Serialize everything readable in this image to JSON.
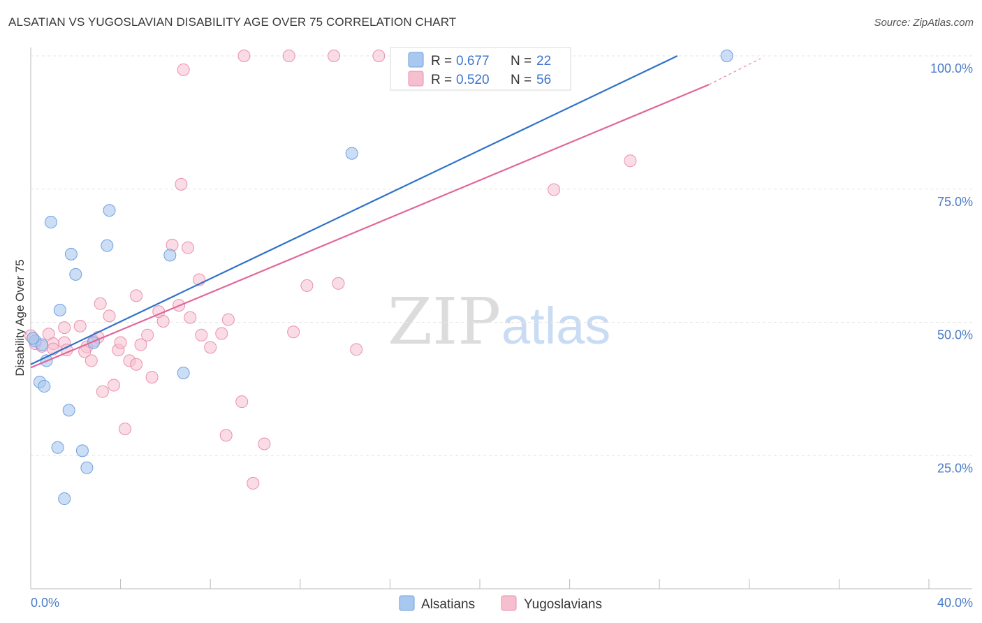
{
  "header": {
    "title": "ALSATIAN VS YUGOSLAVIAN DISABILITY AGE OVER 75 CORRELATION CHART",
    "source": "Source: ZipAtlas.com"
  },
  "watermark": {
    "zip": "ZIP",
    "atlas": "atlas"
  },
  "colors": {
    "alsatian_fill": "#a9c8f0",
    "alsatian_stroke": "#6f9fdc",
    "alsatian_line": "#2f72c9",
    "yugoslavian_fill": "#f6bfd0",
    "yugoslavian_stroke": "#eb8fae",
    "yugoslavian_line": "#e0679a",
    "accent_text": "#3d74cc"
  },
  "legend": {
    "r_label": "R = ",
    "n_label": "N = ",
    "alsatian": {
      "r": "0.677",
      "n": "22"
    },
    "yugoslavian": {
      "r": "0.520",
      "n": "56"
    }
  },
  "chart_data": {
    "type": "scatter",
    "title": "ALSATIAN VS YUGOSLAVIAN DISABILITY AGE OVER 75 CORRELATION CHART",
    "xlabel": "",
    "ylabel": "Disability Age Over 75",
    "xlim": [
      0,
      40
    ],
    "ylim": [
      0,
      103
    ],
    "x_tick_labels": [
      "0.0%",
      "40.0%"
    ],
    "y_ticks": [
      25,
      50,
      75,
      100
    ],
    "y_tick_labels": [
      "25.0%",
      "50.0%",
      "75.0%",
      "100.0%"
    ],
    "grid": true,
    "legend_position": "bottom",
    "series": [
      {
        "name": "Alsatians",
        "r": 0.677,
        "n": 22,
        "trend": {
          "x": [
            0,
            28.8
          ],
          "y": [
            42.1,
            100
          ]
        },
        "points": [
          [
            0.2,
            46.5
          ],
          [
            0.5,
            45.8
          ],
          [
            0.7,
            42.8
          ],
          [
            0.4,
            38.8
          ],
          [
            0.6,
            38.0
          ],
          [
            0.9,
            68.8
          ],
          [
            1.3,
            52.3
          ],
          [
            1.8,
            62.8
          ],
          [
            2.0,
            59.0
          ],
          [
            3.5,
            71.0
          ],
          [
            3.4,
            64.4
          ],
          [
            2.8,
            46.2
          ],
          [
            6.2,
            62.6
          ],
          [
            6.8,
            40.5
          ],
          [
            1.7,
            33.5
          ],
          [
            1.2,
            26.5
          ],
          [
            2.3,
            25.9
          ],
          [
            2.5,
            22.7
          ],
          [
            1.5,
            16.9
          ],
          [
            14.3,
            81.7
          ],
          [
            31.0,
            100.0
          ],
          [
            0.1,
            47.0
          ]
        ]
      },
      {
        "name": "Yugoslavians",
        "r": 0.52,
        "n": 56,
        "trend": {
          "x": [
            0,
            30.2
          ],
          "y": [
            41.5,
            94.6
          ]
        },
        "trend_dashed_extension": {
          "x": [
            30.2,
            32.5
          ],
          "y": [
            94.6,
            99.5
          ]
        },
        "points": [
          [
            0.1,
            47.0
          ],
          [
            0.2,
            46.0
          ],
          [
            0.5,
            45.5
          ],
          [
            0.8,
            47.8
          ],
          [
            1.0,
            46.0
          ],
          [
            1.5,
            46.2
          ],
          [
            1.6,
            44.8
          ],
          [
            1.5,
            49.0
          ],
          [
            2.2,
            49.3
          ],
          [
            2.8,
            46.5
          ],
          [
            2.5,
            45.4
          ],
          [
            2.4,
            44.5
          ],
          [
            2.7,
            42.8
          ],
          [
            3.0,
            47.2
          ],
          [
            3.1,
            53.5
          ],
          [
            3.5,
            51.2
          ],
          [
            3.9,
            44.8
          ],
          [
            4.0,
            46.2
          ],
          [
            4.4,
            42.8
          ],
          [
            4.7,
            42.1
          ],
          [
            4.7,
            55.0
          ],
          [
            4.9,
            45.8
          ],
          [
            5.2,
            47.6
          ],
          [
            5.4,
            39.7
          ],
          [
            5.7,
            52.0
          ],
          [
            5.9,
            50.2
          ],
          [
            6.3,
            64.5
          ],
          [
            6.6,
            53.2
          ],
          [
            6.7,
            75.9
          ],
          [
            7.0,
            64.0
          ],
          [
            7.1,
            50.9
          ],
          [
            7.5,
            58.0
          ],
          [
            7.6,
            47.6
          ],
          [
            8.0,
            45.3
          ],
          [
            8.5,
            47.9
          ],
          [
            8.8,
            50.5
          ],
          [
            3.7,
            38.2
          ],
          [
            3.2,
            37.0
          ],
          [
            4.2,
            30.0
          ],
          [
            8.7,
            28.8
          ],
          [
            9.4,
            35.1
          ],
          [
            10.4,
            27.2
          ],
          [
            9.9,
            19.8
          ],
          [
            12.3,
            56.9
          ],
          [
            11.7,
            48.2
          ],
          [
            13.7,
            57.3
          ],
          [
            14.5,
            44.9
          ],
          [
            6.8,
            97.4
          ],
          [
            9.5,
            100.0
          ],
          [
            11.5,
            100.0
          ],
          [
            13.5,
            100.0
          ],
          [
            15.5,
            100.0
          ],
          [
            23.3,
            74.9
          ],
          [
            26.7,
            80.3
          ],
          [
            0.0,
            47.5
          ],
          [
            1.0,
            45.0
          ]
        ]
      }
    ]
  },
  "bottom_legend": {
    "alsatians": "Alsatians",
    "yugoslavians": "Yugoslavians"
  }
}
